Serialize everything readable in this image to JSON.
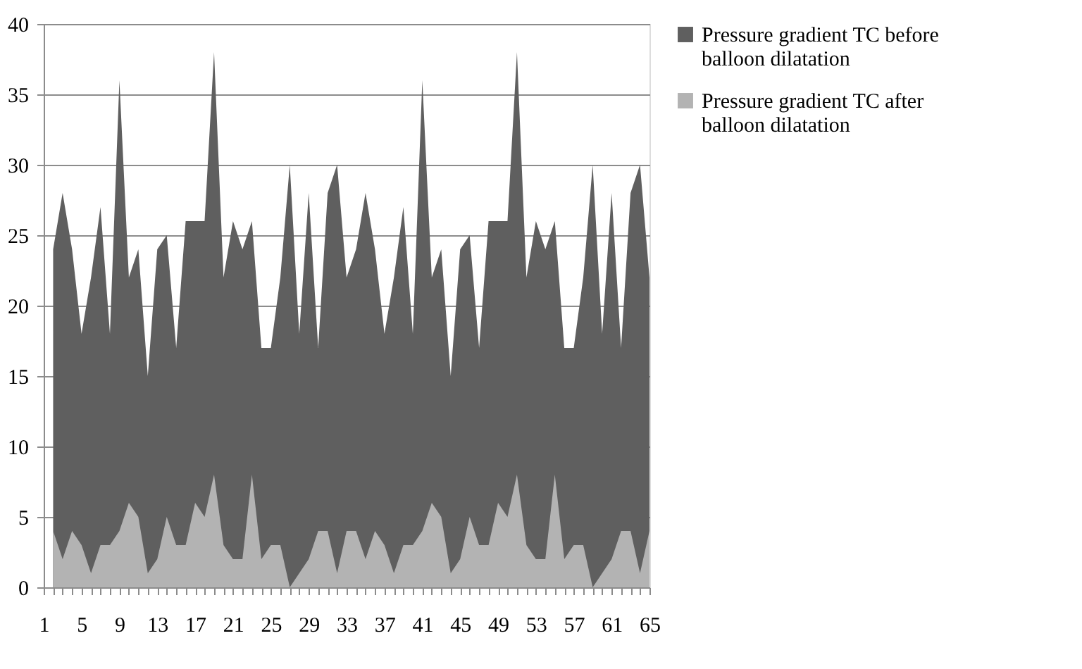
{
  "chart_data": {
    "type": "area",
    "categories": [
      "1",
      null,
      null,
      null,
      "5",
      null,
      null,
      null,
      "9",
      null,
      null,
      null,
      "13",
      null,
      null,
      null,
      "17",
      null,
      null,
      null,
      "21",
      null,
      null,
      null,
      "25",
      null,
      null,
      null,
      "29",
      null,
      null,
      null,
      "33",
      null,
      null,
      null,
      "37",
      null,
      null,
      null,
      "41",
      null,
      null,
      null,
      "45",
      null,
      null,
      null,
      "49",
      null,
      null,
      null,
      "53",
      null,
      null,
      null,
      "57",
      null,
      null,
      null,
      "61",
      null,
      null,
      null,
      "65"
    ],
    "series": [
      {
        "name": "Pressure gradient TC before balloon dilatation",
        "color": "#5f5f5f",
        "values": [
          null,
          24,
          28,
          24,
          18,
          22,
          27,
          18,
          36,
          22,
          24,
          15,
          24,
          25,
          17,
          26,
          26,
          26,
          38,
          22,
          26,
          24,
          26,
          17,
          17,
          22,
          30,
          18,
          28,
          17,
          28,
          30,
          22,
          24,
          28,
          24,
          18,
          22,
          27,
          18,
          36,
          22,
          24,
          15,
          24,
          25,
          17,
          26,
          26,
          26,
          38,
          22,
          26,
          24,
          26,
          17,
          17,
          22,
          30,
          18,
          28,
          17,
          28,
          30,
          22
        ]
      },
      {
        "name": "Pressure gradient TC after balloon dilatation",
        "color": "#b3b3b3",
        "values": [
          null,
          4,
          2,
          4,
          3,
          1,
          3,
          3,
          4,
          6,
          5,
          1,
          2,
          5,
          3,
          3,
          6,
          5,
          8,
          3,
          2,
          2,
          8,
          2,
          3,
          3,
          0,
          1,
          2,
          4,
          4,
          1,
          4,
          4,
          2,
          4,
          3,
          1,
          3,
          3,
          4,
          6,
          5,
          1,
          2,
          5,
          3,
          3,
          6,
          5,
          8,
          3,
          2,
          2,
          8,
          2,
          3,
          3,
          0,
          1,
          2,
          4,
          4,
          1,
          4
        ]
      }
    ],
    "ylim": [
      0,
      40
    ],
    "yticks": [
      0,
      5,
      10,
      15,
      20,
      25,
      30,
      35,
      40
    ],
    "grid": "y",
    "legend": "right"
  }
}
